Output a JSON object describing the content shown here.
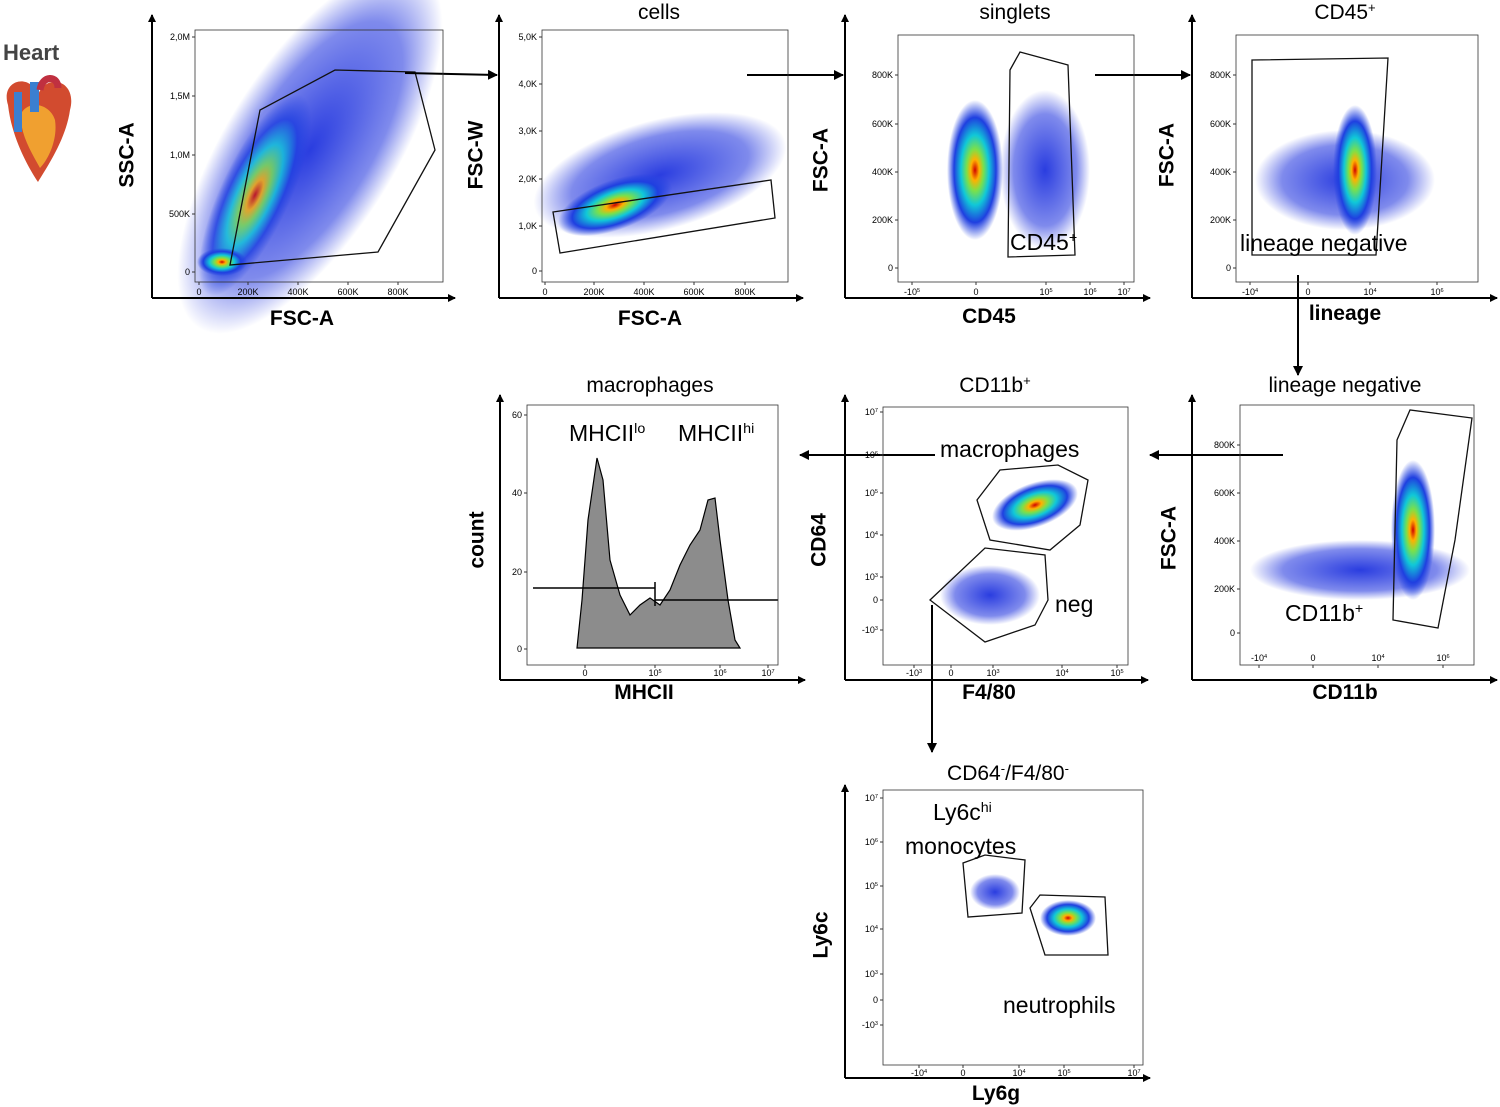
{
  "heart_label": "Heart",
  "panels": [
    {
      "y_label": "SSC-A",
      "x_label": "FSC-A",
      "y_ticks": [
        [
          "2,0M"
        ],
        [
          "1,5M"
        ],
        [
          "1,0M"
        ],
        [
          "500K"
        ],
        [
          "0"
        ]
      ],
      "x_ticks": [
        [
          "0"
        ],
        [
          "200K"
        ],
        [
          "400K"
        ],
        [
          "600K"
        ],
        [
          "800K"
        ]
      ]
    },
    {
      "title": [
        "cells"
      ],
      "y_label": "FSC-W",
      "x_label": "FSC-A",
      "y_ticks": [
        [
          "5,0K"
        ],
        [
          "4,0K"
        ],
        [
          "3,0K"
        ],
        [
          "2,0K"
        ],
        [
          "1,0K"
        ],
        [
          "0"
        ]
      ],
      "x_ticks": [
        [
          "0"
        ],
        [
          "200K"
        ],
        [
          "400K"
        ],
        [
          "600K"
        ],
        [
          "800K"
        ]
      ]
    },
    {
      "title": [
        "singlets"
      ],
      "y_label": "FSC-A",
      "x_label": "CD45",
      "y_ticks": [
        [
          "800K"
        ],
        [
          "600K"
        ],
        [
          "400K"
        ],
        [
          "200K"
        ],
        [
          "0"
        ]
      ],
      "x_ticks": [
        [
          "-10",
          "5"
        ],
        [
          "0"
        ],
        [
          "10",
          "5"
        ],
        [
          "10",
          "6"
        ],
        [
          "10",
          "7"
        ]
      ]
    },
    {
      "title": [
        "CD45",
        "+"
      ],
      "y_label": "FSC-A",
      "x_label": "lineage",
      "y_ticks": [
        [
          "800K"
        ],
        [
          "600K"
        ],
        [
          "400K"
        ],
        [
          "200K"
        ],
        [
          "0"
        ]
      ],
      "x_ticks": [
        [
          "-10",
          "4"
        ],
        [
          "0"
        ],
        [
          "10",
          "4"
        ],
        [
          "10",
          "6"
        ]
      ]
    },
    {
      "title": [
        "lineage negative"
      ],
      "y_label": "FSC-A",
      "x_label": "CD11b",
      "y_ticks": [
        [
          "800K"
        ],
        [
          "600K"
        ],
        [
          "400K"
        ],
        [
          "200K"
        ],
        [
          "0"
        ]
      ],
      "x_ticks": [
        [
          "-10",
          "4"
        ],
        [
          "0"
        ],
        [
          "10",
          "4"
        ],
        [
          "10",
          "6"
        ]
      ]
    },
    {
      "title": [
        "CD11b",
        "+"
      ],
      "y_label": "CD64",
      "x_label": "F4/80",
      "y_ticks": [
        [
          "10",
          "7"
        ],
        [
          "10",
          "6"
        ],
        [
          "10",
          "5"
        ],
        [
          "10",
          "4"
        ],
        [
          "10",
          "3"
        ],
        [
          "0"
        ],
        [
          "-10",
          "3"
        ]
      ],
      "x_ticks": [
        [
          "-10",
          "3"
        ],
        [
          "0"
        ],
        [
          "10",
          "3"
        ],
        [
          "10",
          "4"
        ],
        [
          "10",
          "5"
        ]
      ]
    },
    {
      "title": [
        "macrophages"
      ],
      "y_label": "count",
      "x_label": "MHCII",
      "y_ticks": [
        [
          "60"
        ],
        [
          "40"
        ],
        [
          "20"
        ],
        [
          "0"
        ]
      ],
      "x_ticks": [
        [
          "0"
        ],
        [
          "10",
          "5"
        ],
        [
          "10",
          "6"
        ],
        [
          "10",
          "7"
        ]
      ]
    },
    {
      "title": [
        "CD64",
        "-",
        "/F4/80",
        "-"
      ],
      "y_label": "Ly6c",
      "x_label": "Ly6g",
      "y_ticks": [
        [
          "10",
          "7"
        ],
        [
          "10",
          "6"
        ],
        [
          "10",
          "5"
        ],
        [
          "10",
          "4"
        ],
        [
          "10",
          "3"
        ],
        [
          "0"
        ],
        [
          "-10",
          "3"
        ]
      ],
      "x_ticks": [
        [
          "-10",
          "4"
        ],
        [
          "0"
        ],
        [
          "10",
          "4"
        ],
        [
          "10",
          "5"
        ],
        [
          "10",
          "7"
        ]
      ]
    }
  ],
  "gate_labels": [
    [
      "CD45",
      "+"
    ],
    [
      "lineage negative"
    ],
    [
      "CD11b",
      "+"
    ],
    [
      "macrophages"
    ],
    [
      "neg"
    ],
    [
      "MHCII",
      "lo"
    ],
    [
      "MHCII",
      "hi"
    ],
    [
      "Ly6c",
      "hi"
    ],
    [
      "monocytes"
    ],
    [
      "neutrophils"
    ]
  ]
}
